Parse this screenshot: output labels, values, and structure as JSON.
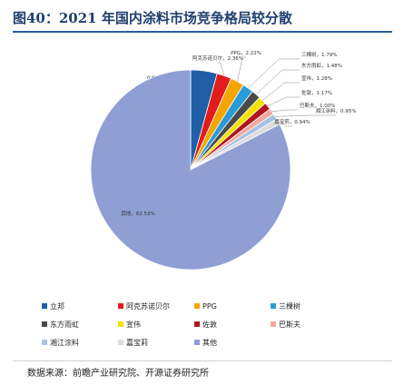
{
  "title": "图40：2021 年国内涂料市场竞争格局较分散",
  "chart_data": {
    "type": "pie",
    "slices": [
      {
        "name": "立邦",
        "value": 4.28,
        "label": "立邦，4.28%",
        "color": "#1f5fa8"
      },
      {
        "name": "阿克苏诺贝尔",
        "value": 2.36,
        "label": "阿克苏诺贝尔，2.36%",
        "color": "#e21b1b"
      },
      {
        "name": "PPG",
        "value": 2.22,
        "label": "PPG，2.22%",
        "color": "#f5a500"
      },
      {
        "name": "三棵树",
        "value": 1.79,
        "label": "三棵树，1.79%",
        "color": "#2a9bd6"
      },
      {
        "name": "东方雨虹",
        "value": 1.48,
        "label": "东方雨虹，1.48%",
        "color": "#4a4a4a"
      },
      {
        "name": "宣伟",
        "value": 1.28,
        "label": "宣伟，1.28%",
        "color": "#f2e200"
      },
      {
        "name": "佐敦",
        "value": 1.17,
        "label": "佐敦，1.17%",
        "color": "#b0161c"
      },
      {
        "name": "巴斯夫",
        "value": 1.0,
        "label": "巴斯夫，1.00%",
        "color": "#f2a7a0"
      },
      {
        "name": "湘江涂料",
        "value": 0.95,
        "label": "湘江涂料，0.95%",
        "color": "#a4c2e3"
      },
      {
        "name": "嘉宝莉",
        "value": 0.94,
        "label": "嘉宝莉，0.94%",
        "color": "#dcdcdc"
      },
      {
        "name": "其他",
        "value": 82.53,
        "label": "其他，82.53%",
        "color": "#8f9fd4"
      }
    ],
    "legend_position": "bottom"
  },
  "source": "数据来源：前瞻产业研究院、开源证券研究所"
}
